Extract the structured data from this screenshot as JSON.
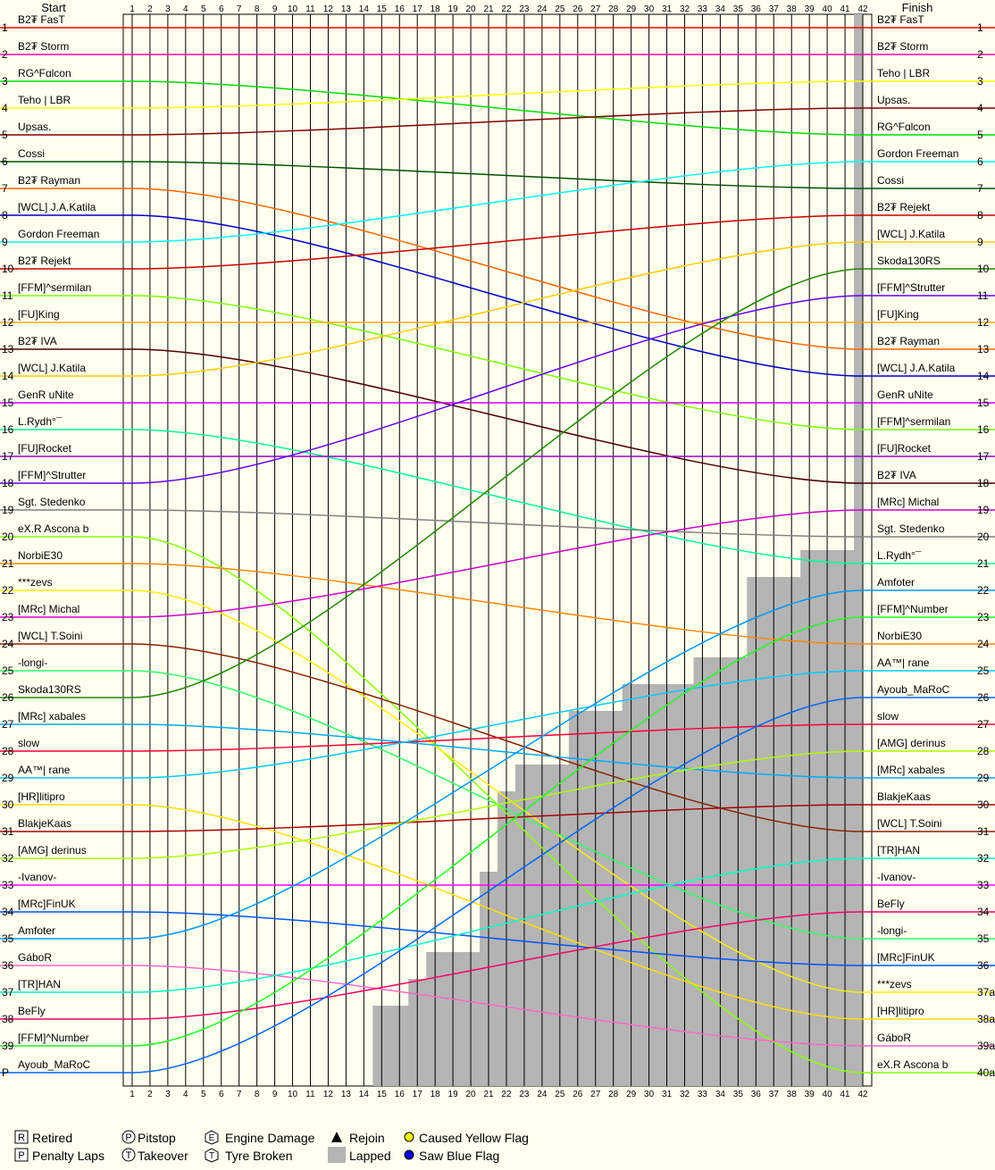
{
  "chart_data": {
    "type": "line",
    "header": {
      "start": "Start",
      "finish": "Finish"
    },
    "laps": 42,
    "start_order": [
      "B2₮ FasT",
      "B2₮ Storm",
      "RG^Fɑlcon",
      "Teho | LBR",
      "Upsas.",
      "Cossi",
      "B2₮ Rayman",
      "[WCL] J.A.Katila",
      "Gordon Freeman",
      "B2₮ Rejekt",
      "[FFM]^sermilan",
      "[FU]King",
      "B2₮ IVA",
      "[WCL] J.Katila",
      "GenR uNite",
      "L.Rydh°¯",
      "[FU]Rocket",
      "[FFM]^Strutter",
      "Sgt. Stedenko",
      "eX.R Ascona b",
      "NorbiE30",
      "***zevs",
      "[MRc] Michal",
      "[WCL] T.Soini",
      "-longi-",
      "Skoda130RS",
      "[MRc] xabales",
      "slow",
      "AA™| rane",
      "[HR]litipro",
      "BlakjeKaas",
      "[AMG] derinus",
      "-Ivanov-",
      "[MRc]FinUK",
      "Amfoter",
      "GáboR",
      "[TR]HAN",
      "BeFly",
      "[FFM]^Number",
      "Ayoub_MaRoC"
    ],
    "start_positions": [
      "1",
      "2",
      "3",
      "4",
      "5",
      "6",
      "7",
      "8",
      "9",
      "10",
      "11",
      "12",
      "13",
      "14",
      "15",
      "16",
      "17",
      "18",
      "19",
      "20",
      "21",
      "22",
      "23",
      "24",
      "25",
      "26",
      "27",
      "28",
      "29",
      "30",
      "31",
      "32",
      "33",
      "34",
      "35",
      "36",
      "37",
      "38",
      "39",
      "P"
    ],
    "finish_order": [
      "B2₮ FasT",
      "B2₮ Storm",
      "Teho | LBR",
      "Upsas.",
      "RG^Fɑlcon",
      "Gordon Freeman",
      "Cossi",
      "B2₮ Rejekt",
      "[WCL] J.Katila",
      "Skoda130RS",
      "[FFM]^Strutter",
      "[FU]King",
      "B2₮ Rayman",
      "[WCL] J.A.Katila",
      "GenR uNite",
      "[FFM]^sermilan",
      "[FU]Rocket",
      "B2₮ IVA",
      "[MRc] Michal",
      "Sgt. Stedenko",
      "L.Rydh°¯",
      "Amfoter",
      "[FFM]^Number",
      "NorbiE30",
      "AA™| rane",
      "Ayoub_MaRoC",
      "slow",
      "[AMG] derinus",
      "[MRc] xabales",
      "BlakjeKaas",
      "[WCL] T.Soini",
      "[TR]HAN",
      "-Ivanov-",
      "BeFly",
      "-longi-",
      "[MRc]FinUK",
      "***zevs",
      "[HR]litipro",
      "GáboR",
      "eX.R Ascona b"
    ],
    "finish_positions": [
      "1",
      "2",
      "3",
      "4",
      "5",
      "6",
      "7",
      "8",
      "9",
      "10",
      "11",
      "12",
      "13",
      "14",
      "15",
      "16",
      "17",
      "18",
      "19",
      "20",
      "21",
      "22",
      "23",
      "24",
      "25",
      "26",
      "27",
      "28",
      "29",
      "30",
      "31",
      "32",
      "33",
      "34",
      "35",
      "36",
      "37a",
      "38a",
      "39a",
      "40a"
    ],
    "lapped_from_lap": [
      42,
      42,
      42,
      42,
      42,
      42,
      42,
      42,
      42,
      42,
      42,
      42,
      42,
      42,
      42,
      42,
      42,
      42,
      42,
      42,
      39,
      36,
      36,
      36,
      33,
      29,
      26,
      26,
      23,
      22,
      22,
      22,
      21,
      21,
      21,
      18,
      17,
      15,
      15,
      15
    ],
    "legend": [
      {
        "symbol": "R",
        "label": "Retired"
      },
      {
        "symbol": "P",
        "label": "Pitstop"
      },
      {
        "symbol": "E",
        "label": "Engine Damage"
      },
      {
        "symbol": "triangle",
        "label": "Rejoin"
      },
      {
        "symbol": "yellow-dot",
        "label": "Caused Yellow Flag"
      },
      {
        "symbol": "P",
        "label": "Penalty Laps"
      },
      {
        "symbol": "T",
        "label": "Takeover"
      },
      {
        "symbol": "T",
        "label": "Tyre Broken"
      },
      {
        "symbol": "gray-box",
        "label": "Lapped"
      },
      {
        "symbol": "blue-dot",
        "label": "Saw Blue Flag"
      }
    ],
    "colors": {
      "background": "#fffff0",
      "lapped": "#b4b4b4",
      "yellow_flag": "#ffff00",
      "blue_flag": "#0000e0",
      "palette": [
        "#ff0000",
        "#ff00aa",
        "#00dd00",
        "#ffff00",
        "#800000",
        "#005000",
        "#ff6600",
        "#0000cc",
        "#00ffff",
        "#cc0000",
        "#80ff00",
        "#ffaa00",
        "#4d0000",
        "#ffcc00",
        "#cc00ff",
        "#00ff99",
        "#9900cc",
        "#6600ff",
        "#808080",
        "#88ff00",
        "#ff8800",
        "#ffee00",
        "#cc00cc",
        "#882200",
        "#33ff66",
        "#228800",
        "#00aaff",
        "#ff0033",
        "#00ccff",
        "#ffdd00",
        "#aa0000",
        "#aaff00",
        "#ff00ff",
        "#0055ff",
        "#0099ff",
        "#ff66cc",
        "#00ffcc",
        "#ff0066",
        "#22ff22",
        "#0066ff"
      ]
    }
  }
}
